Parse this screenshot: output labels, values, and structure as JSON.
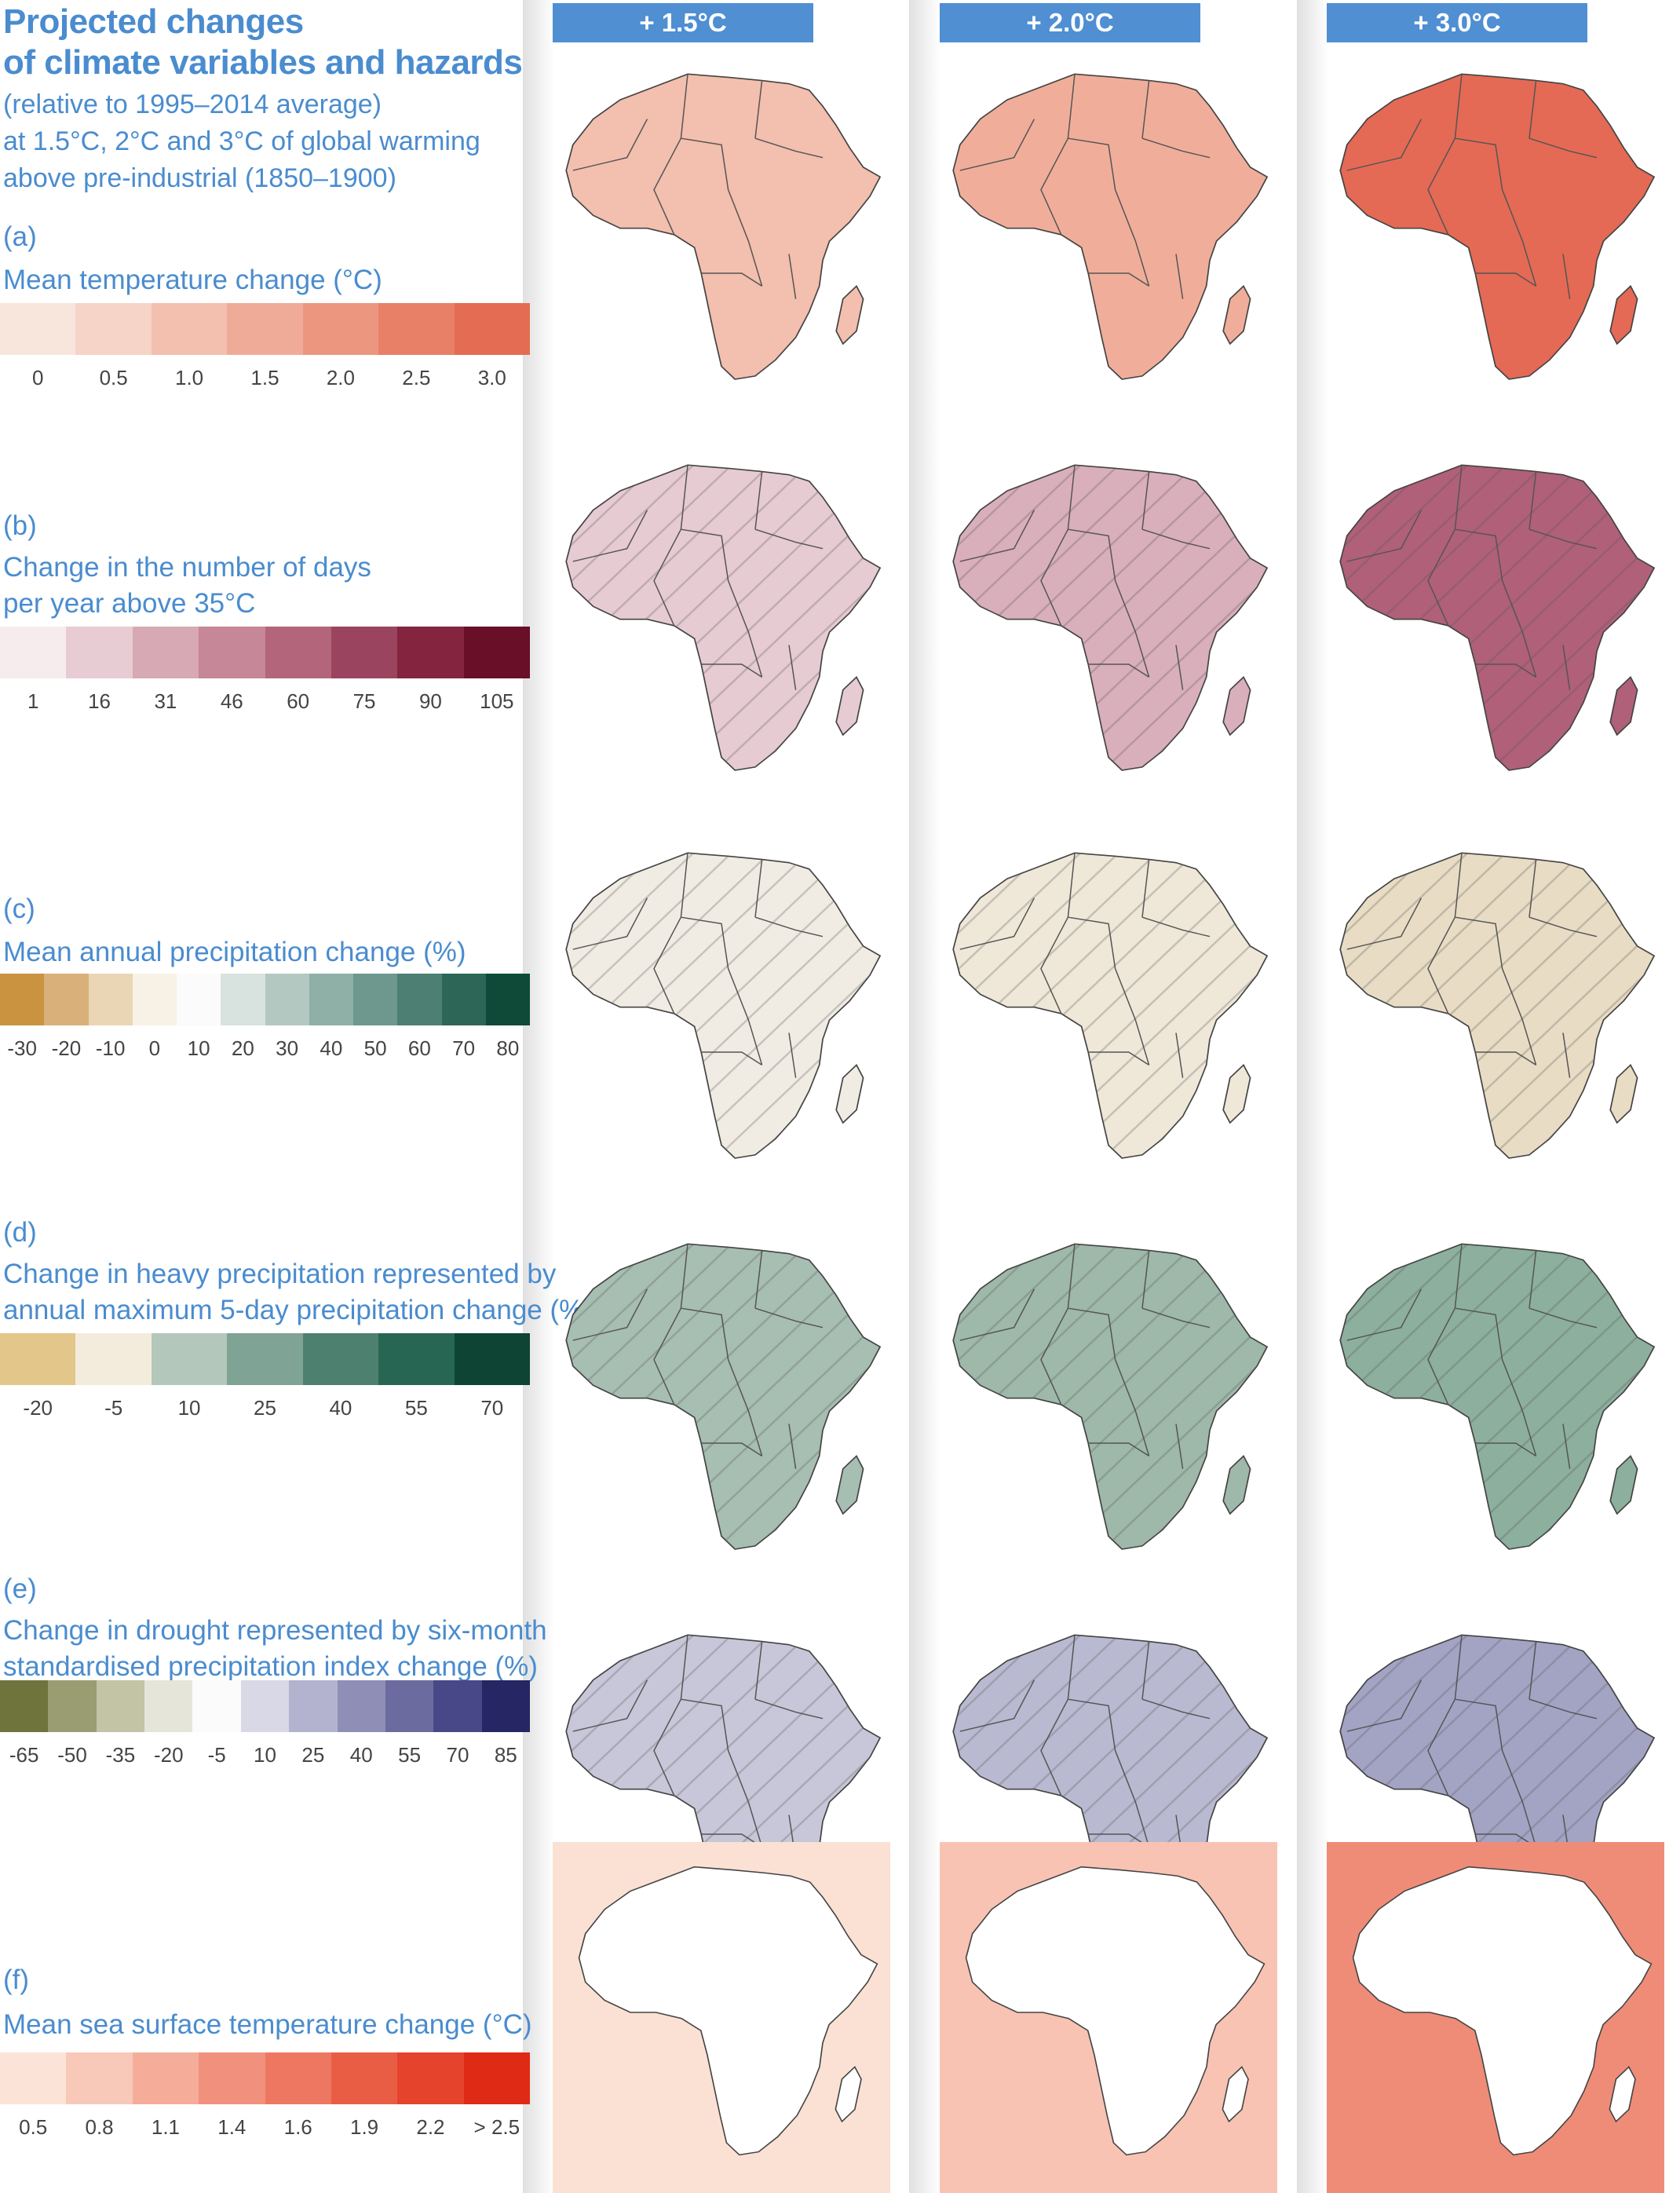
{
  "header": {
    "title_line1": "Projected changes",
    "title_line2": "of climate variables and hazards",
    "subtitle_line1": "(relative to 1995–2014 average)",
    "subtitle_line2": "at 1.5°C, 2°C and 3°C of global warming",
    "subtitle_line3": "above pre-industrial (1850–1900)"
  },
  "columns": [
    "+ 1.5°C",
    "+ 2.0°C",
    "+ 3.0°C"
  ],
  "panels": [
    {
      "letter": "(a)",
      "title_lines": [
        "Mean temperature change (°C)"
      ],
      "colors": [
        "#f8e6dc",
        "#f6d4c8",
        "#f3c0b0",
        "#f0ab98",
        "#ec9680",
        "#e88068",
        "#e46c52"
      ],
      "ticks": [
        "0",
        "0.5",
        "1.0",
        "1.5",
        "2.0",
        "2.5",
        "3.0"
      ],
      "map_colors": [
        "#f3bfae",
        "#f0ae9a",
        "#e46a55"
      ]
    },
    {
      "letter": "(b)",
      "title_lines": [
        "Change in the number of days",
        "per year above 35°C"
      ],
      "colors": [
        "#f6ecee",
        "#e8ccd3",
        "#d7a9b5",
        "#c68798",
        "#b2657b",
        "#9b4460",
        "#84243f",
        "#6a0f28"
      ],
      "ticks": [
        "1",
        "16",
        "31",
        "46",
        "60",
        "75",
        "90",
        "105"
      ],
      "map_colors": [
        "#e7cbd2",
        "#d9afbb",
        "#b06078"
      ]
    },
    {
      "letter": "(c)",
      "title_lines": [
        "Mean annual precipitation change (%)"
      ],
      "colors": [
        "#c99340",
        "#d9b07a",
        "#ead5b4",
        "#f8f2e6",
        "#fbfbfb",
        "#d8e3df",
        "#b2c8c1",
        "#8fb0a7",
        "#6e978d",
        "#4d7f72",
        "#2d6656",
        "#0f4a39"
      ],
      "ticks": [
        "-30",
        "-20",
        "-10",
        "0",
        "10",
        "20",
        "30",
        "40",
        "50",
        "60",
        "70",
        "80"
      ],
      "map_colors": [
        "#f1ece3",
        "#efe7d8",
        "#e8dcc4"
      ]
    },
    {
      "letter": "(d)",
      "title_lines": [
        "Change in heavy precipitation represented by",
        "annual maximum 5-day precipitation change (%)"
      ],
      "colors": [
        "#e2c68a",
        "#f3ecdc",
        "#b4c7bb",
        "#7fa394",
        "#4e8070",
        "#276652",
        "#0d4433"
      ],
      "ticks": [
        "-20",
        "-5",
        "10",
        "25",
        "40",
        "55",
        "70"
      ],
      "map_colors": [
        "#a7beb2",
        "#9eb8a9",
        "#8daf9d"
      ]
    },
    {
      "letter": "(e)",
      "title_lines": [
        "Change in drought represented by six-month",
        "standardised precipitation index change (%)"
      ],
      "colors": [
        "#6e743c",
        "#9a9c72",
        "#c3c3a6",
        "#e5e5da",
        "#fbfbfb",
        "#d8d8e6",
        "#b3b3cf",
        "#8e8eb7",
        "#6b6b9f",
        "#484888",
        "#262665"
      ],
      "ticks": [
        "-65",
        "-50",
        "-35",
        "-20",
        "-5",
        "10",
        "25",
        "40",
        "55",
        "70",
        "85"
      ],
      "map_colors": [
        "#c7c7d9",
        "#b9b9d1",
        "#a3a3c4"
      ]
    },
    {
      "letter": "(f)",
      "title_lines": [
        "Mean sea surface temperature change (°C)"
      ],
      "colors": [
        "#fbe4d7",
        "#f8c8b9",
        "#f5ad9a",
        "#f1917d",
        "#ee7761",
        "#ea5d45",
        "#e5432c",
        "#df2a16"
      ],
      "ticks": [
        "0.5",
        "0.8",
        "1.1",
        "1.4",
        "1.6",
        "1.9",
        "2.2",
        "> 2.5"
      ],
      "map_colors": [
        "#fbe1d4",
        "#f8c3b3",
        "#ef8c78"
      ]
    }
  ]
}
